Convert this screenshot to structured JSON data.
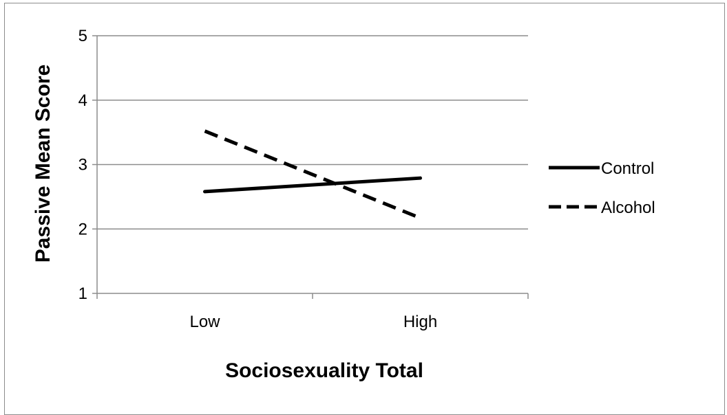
{
  "chart_data": {
    "type": "line",
    "categories": [
      "Low",
      "High"
    ],
    "series": [
      {
        "name": "Control",
        "values": [
          2.58,
          2.79
        ],
        "style": "solid",
        "color": "#000000"
      },
      {
        "name": "Alcohol",
        "values": [
          3.52,
          2.17
        ],
        "style": "dashed",
        "color": "#000000"
      }
    ],
    "xlabel": "Sociosexuality Total",
    "ylabel": "Passive Mean Score",
    "ylim": [
      1,
      5
    ],
    "yticks": [
      "1",
      "2",
      "3",
      "4",
      "5"
    ],
    "grid": "horizontal",
    "legend_position": "right"
  }
}
